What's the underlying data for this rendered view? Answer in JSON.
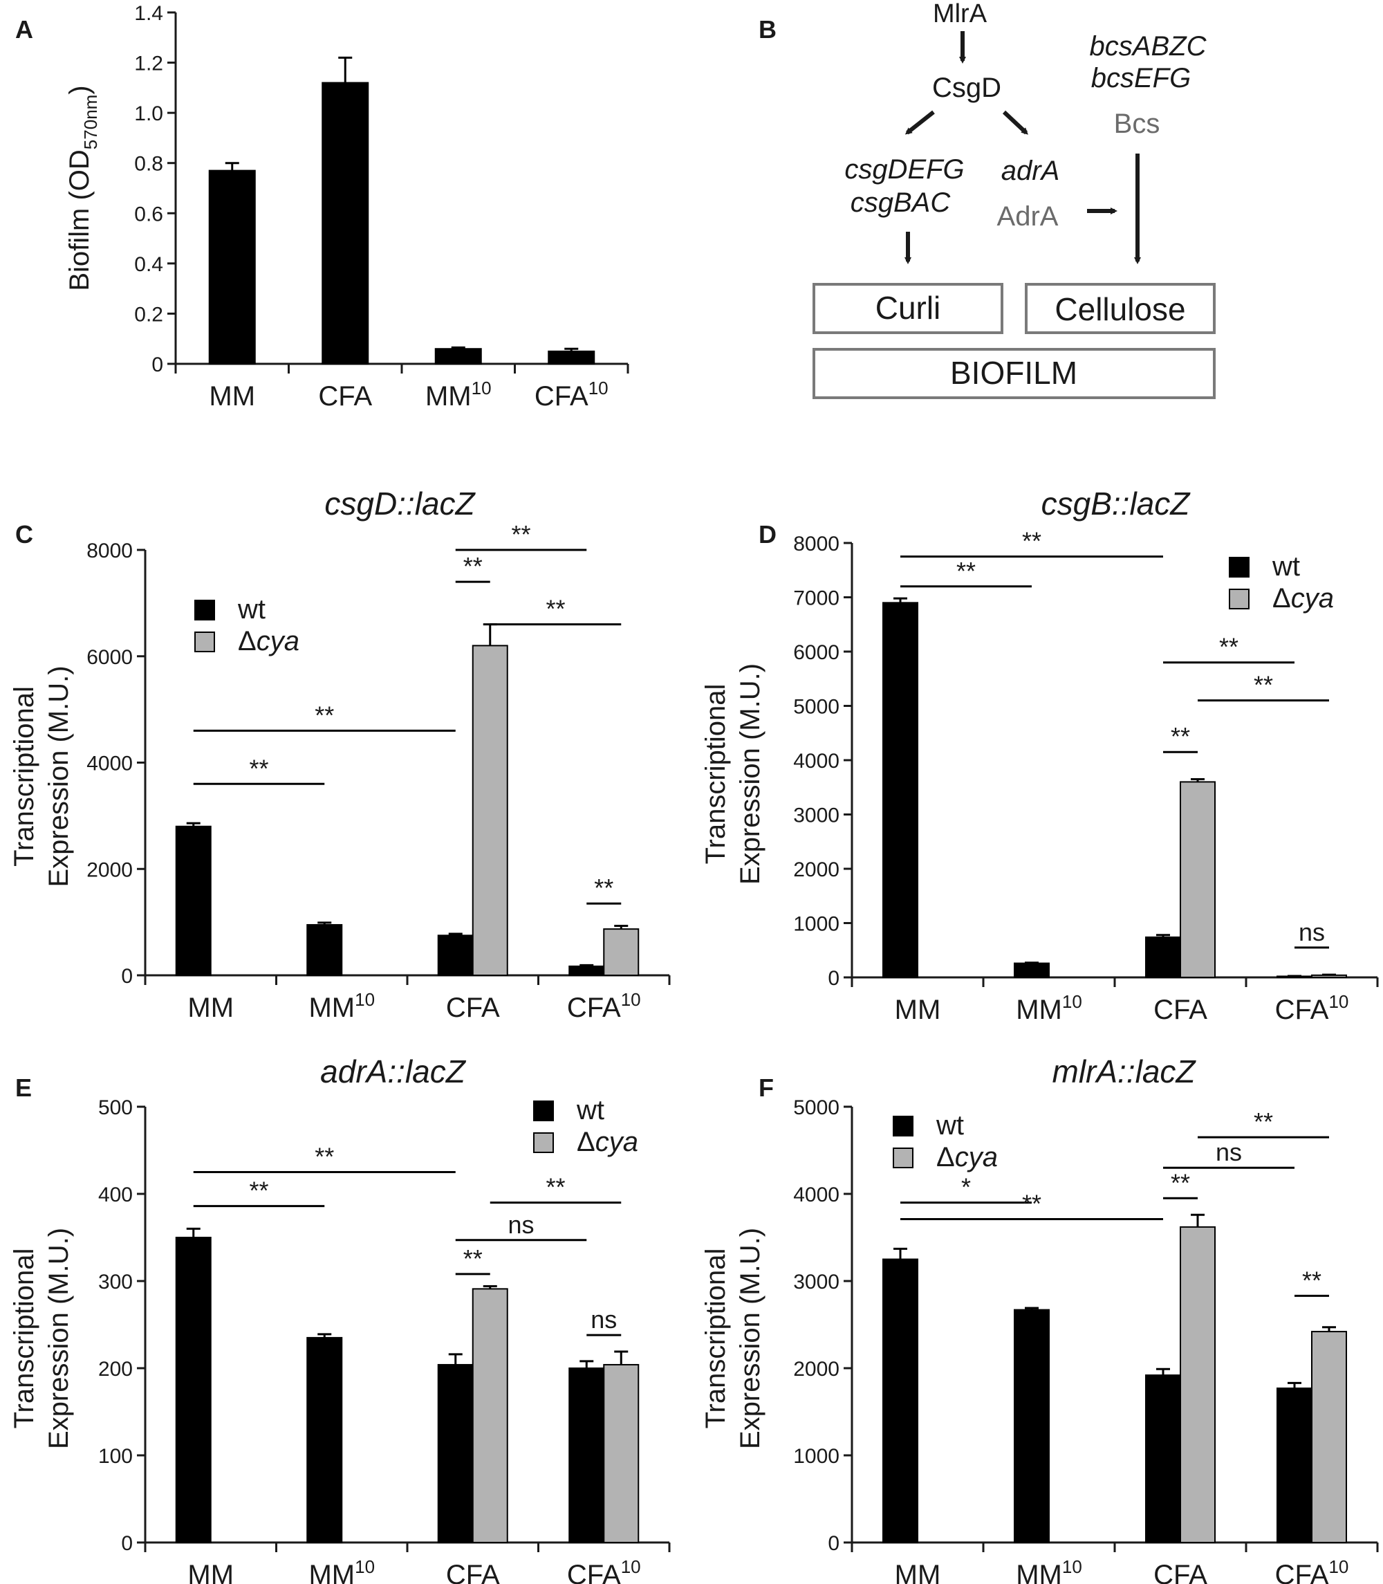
{
  "colors": {
    "wt": "#000000",
    "cya": "#b3b3b3",
    "axis": "#1a1a1a",
    "box": "#7a7a7a",
    "gray_text": "#6b6b6b"
  },
  "panel_labels": [
    "A",
    "B",
    "C",
    "D",
    "E",
    "F"
  ],
  "chart_data": [
    {
      "panel": "A",
      "type": "bar",
      "title": "",
      "ylabel_main": "Biofilm (OD",
      "ylabel_sub": "570nm",
      "ylabel_end": ")",
      "ylim": [
        0,
        1.4
      ],
      "yticks": [
        0,
        0.2,
        0.4,
        0.6,
        0.8,
        1.0,
        1.2,
        1.4
      ],
      "ytick_labels": [
        "0",
        "0.2",
        "0.4",
        "0.6",
        "0.8",
        "1.0",
        "1.2",
        "1.4"
      ],
      "categories": [
        {
          "main": "MM",
          "sup": ""
        },
        {
          "main": "CFA",
          "sup": ""
        },
        {
          "main": "MM",
          "sup": "10"
        },
        {
          "main": "CFA",
          "sup": "10"
        }
      ],
      "series": [
        {
          "name": "wt",
          "color": "wt",
          "values": [
            0.77,
            1.12,
            0.06,
            0.05
          ],
          "errors": [
            0.03,
            0.1,
            0.005,
            0.01
          ]
        }
      ],
      "legend": [],
      "annotations": []
    },
    {
      "panel": "C",
      "type": "bar",
      "title": "csgD::lacZ",
      "ylabel_lines": [
        "Transcriptional",
        "Expression (M.U.)"
      ],
      "ylim": [
        0,
        8000
      ],
      "yticks": [
        0,
        2000,
        4000,
        6000,
        8000
      ],
      "ytick_labels": [
        "0",
        "2000",
        "4000",
        "6000",
        "8000"
      ],
      "categories": [
        {
          "main": "MM",
          "sup": ""
        },
        {
          "main": "MM",
          "sup": "10"
        },
        {
          "main": "CFA",
          "sup": ""
        },
        {
          "main": "CFA",
          "sup": "10"
        }
      ],
      "series": [
        {
          "name": "wt",
          "color": "wt",
          "values": [
            2800,
            950,
            750,
            170
          ],
          "errors": [
            60,
            40,
            30,
            20
          ]
        },
        {
          "name": "Δcya",
          "color": "cya",
          "values": [
            0,
            0,
            6200,
            870
          ],
          "errors": [
            0,
            0,
            400,
            60
          ]
        }
      ],
      "legend": [
        {
          "prefix": "",
          "label": "wt",
          "color": "wt",
          "italic": false
        },
        {
          "prefix": "Δ",
          "label": "cya",
          "color": "cya",
          "italic": true
        }
      ],
      "annotations": [
        {
          "from": "0w",
          "to": "1w",
          "y": 3600,
          "text": "**"
        },
        {
          "from": "0w",
          "to": "2w",
          "y": 4600,
          "text": "**"
        },
        {
          "from": "2w",
          "to": "2c",
          "y": 7400,
          "text": "**"
        },
        {
          "from": "2c",
          "to": "3c",
          "y": 6600,
          "text": "**"
        },
        {
          "from": "2w",
          "to": "3w",
          "y": 8000,
          "text": "**"
        },
        {
          "from": "3w",
          "to": "3c",
          "y": 1350,
          "text": "**"
        }
      ]
    },
    {
      "panel": "D",
      "type": "bar",
      "title": "csgB::lacZ",
      "ylabel_lines": [
        "Transcriptional",
        "Expression (M.U.)"
      ],
      "ylim": [
        0,
        8000
      ],
      "yticks": [
        0,
        1000,
        2000,
        3000,
        4000,
        5000,
        6000,
        7000,
        8000
      ],
      "ytick_labels": [
        "0",
        "1000",
        "2000",
        "3000",
        "4000",
        "5000",
        "6000",
        "7000",
        "8000"
      ],
      "categories": [
        {
          "main": "MM",
          "sup": ""
        },
        {
          "main": "MM",
          "sup": "10"
        },
        {
          "main": "CFA",
          "sup": ""
        },
        {
          "main": "CFA",
          "sup": "10"
        }
      ],
      "series": [
        {
          "name": "wt",
          "color": "wt",
          "values": [
            6900,
            260,
            740,
            20
          ],
          "errors": [
            80,
            10,
            40,
            5
          ]
        },
        {
          "name": "Δcya",
          "color": "cya",
          "values": [
            0,
            0,
            3600,
            40
          ],
          "errors": [
            0,
            0,
            50,
            10
          ]
        }
      ],
      "legend": [
        {
          "prefix": "",
          "label": "wt",
          "color": "wt",
          "italic": false
        },
        {
          "prefix": "Δ",
          "label": "cya",
          "color": "cya",
          "italic": true
        }
      ],
      "annotations": [
        {
          "from": "0w",
          "to": "1w",
          "y": 7200,
          "text": "**"
        },
        {
          "from": "0w",
          "to": "2w",
          "y": 7750,
          "text": "**"
        },
        {
          "from": "2w",
          "to": "2c",
          "y": 4150,
          "text": "**"
        },
        {
          "from": "2w",
          "to": "3w",
          "y": 5800,
          "text": "**"
        },
        {
          "from": "2c",
          "to": "3c",
          "y": 5100,
          "text": "**"
        },
        {
          "from": "3w",
          "to": "3c",
          "y": 550,
          "text": "ns"
        }
      ]
    },
    {
      "panel": "E",
      "type": "bar",
      "title": "adrA::lacZ",
      "ylabel_lines": [
        "Transcriptional",
        "Expression (M.U.)"
      ],
      "ylim": [
        0,
        500
      ],
      "yticks": [
        0,
        100,
        200,
        300,
        400,
        500
      ],
      "ytick_labels": [
        "0",
        "100",
        "200",
        "300",
        "400",
        "500"
      ],
      "categories": [
        {
          "main": "MM",
          "sup": ""
        },
        {
          "main": "MM",
          "sup": "10"
        },
        {
          "main": "CFA",
          "sup": ""
        },
        {
          "main": "CFA",
          "sup": "10"
        }
      ],
      "series": [
        {
          "name": "wt",
          "color": "wt",
          "values": [
            350,
            235,
            204,
            200
          ],
          "errors": [
            10,
            4,
            12,
            8
          ]
        },
        {
          "name": "Δcya",
          "color": "cya",
          "values": [
            0,
            0,
            291,
            204
          ],
          "errors": [
            0,
            0,
            3,
            15
          ]
        }
      ],
      "legend": [
        {
          "prefix": "",
          "label": "wt",
          "color": "wt",
          "italic": false
        },
        {
          "prefix": "Δ",
          "label": "cya",
          "color": "cya",
          "italic": true
        }
      ],
      "annotations": [
        {
          "from": "0w",
          "to": "1w",
          "y": 386,
          "text": "**"
        },
        {
          "from": "0w",
          "to": "2w",
          "y": 425,
          "text": "**"
        },
        {
          "from": "2w",
          "to": "2c",
          "y": 308,
          "text": "**"
        },
        {
          "from": "2w",
          "to": "3w",
          "y": 347,
          "text": "ns"
        },
        {
          "from": "2c",
          "to": "3c",
          "y": 390,
          "text": "**"
        },
        {
          "from": "3w",
          "to": "3c",
          "y": 238,
          "text": "ns"
        }
      ]
    },
    {
      "panel": "F",
      "type": "bar",
      "title": "mlrA::lacZ",
      "ylabel_lines": [
        "Transcriptional",
        "Expression (M.U.)"
      ],
      "ylim": [
        0,
        5000
      ],
      "yticks": [
        0,
        1000,
        2000,
        3000,
        4000,
        5000
      ],
      "ytick_labels": [
        "0",
        "1000",
        "2000",
        "3000",
        "4000",
        "5000"
      ],
      "categories": [
        {
          "main": "MM",
          "sup": ""
        },
        {
          "main": "MM",
          "sup": "10"
        },
        {
          "main": "CFA",
          "sup": ""
        },
        {
          "main": "CFA",
          "sup": "10"
        }
      ],
      "series": [
        {
          "name": "wt",
          "color": "wt",
          "values": [
            3250,
            2670,
            1920,
            1770
          ],
          "errors": [
            120,
            20,
            70,
            60
          ]
        },
        {
          "name": "Δcya",
          "color": "cya",
          "values": [
            0,
            0,
            3620,
            2420
          ],
          "errors": [
            0,
            0,
            140,
            50
          ]
        }
      ],
      "legend": [
        {
          "prefix": "",
          "label": "wt",
          "color": "wt",
          "italic": false
        },
        {
          "prefix": "Δ",
          "label": "cya",
          "color": "cya",
          "italic": true
        }
      ],
      "annotations": [
        {
          "from": "0w",
          "to": "1w",
          "y": 3900,
          "text": "*"
        },
        {
          "from": "0w",
          "to": "2w",
          "y": 3710,
          "text": "**"
        },
        {
          "from": "2w",
          "to": "2c",
          "y": 3950,
          "text": "**"
        },
        {
          "from": "2w",
          "to": "3w",
          "y": 4300,
          "text": "ns"
        },
        {
          "from": "2c",
          "to": "3c",
          "y": 4650,
          "text": "**"
        },
        {
          "from": "3w",
          "to": "3c",
          "y": 2830,
          "text": "**"
        }
      ]
    }
  ],
  "diagram": {
    "mlra": "MlrA",
    "csgd": "CsgD",
    "csg_operons": [
      "csgDEFG",
      "csgBAC"
    ],
    "adra_gene": "adrA",
    "adra_protein": "AdrA",
    "bcs_operons": [
      "bcsABZC",
      "bcsEFG"
    ],
    "bcs_protein": "Bcs",
    "curli": "Curli",
    "cellulose": "Cellulose",
    "biofilm": "BIOFILM"
  }
}
